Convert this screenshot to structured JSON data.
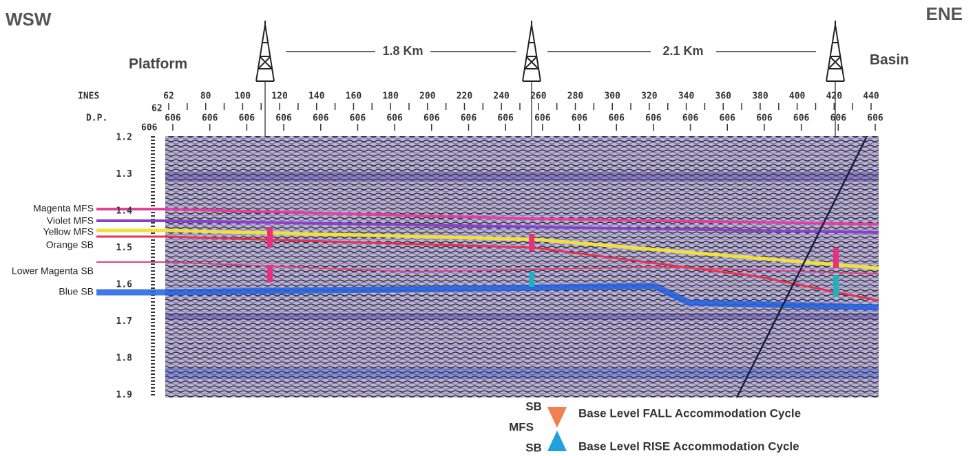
{
  "header": {
    "left": "WSW",
    "right": "ENE"
  },
  "locations": {
    "left": "Platform",
    "right": "Basin"
  },
  "distances": [
    "1.8 Km",
    "2.1 Km"
  ],
  "row_labels": {
    "lines": "INES",
    "sp": "D.P."
  },
  "line_numbers": [
    "62",
    "80",
    "100",
    "120",
    "140",
    "160",
    "180",
    "200",
    "220",
    "240",
    "260",
    "280",
    "300",
    "320",
    "340",
    "360",
    "380",
    "400",
    "420",
    "440"
  ],
  "sp_left": [
    "62",
    "606"
  ],
  "sp_numbers": [
    "606",
    "606",
    "606",
    "606",
    "606",
    "606",
    "606",
    "606",
    "606",
    "606",
    "606",
    "606",
    "606",
    "606",
    "606",
    "606",
    "606",
    "606",
    "606",
    "606"
  ],
  "time_labels": [
    "1.2",
    "1.3",
    "1.4",
    "1.5",
    "1.6",
    "1.7",
    "1.8",
    "1.9"
  ],
  "horizons": [
    "Magenta MFS",
    "Violet MFS",
    "Yellow MFS",
    "Orange SB",
    "Lower Magenta SB",
    "Blue SB"
  ],
  "legend": {
    "top_sb": "SB",
    "mfs": "MFS",
    "bottom_sb": "SB",
    "fall": "Base Level FALL Accommodation Cycle",
    "rise": "Base Level RISE Accommodation Cycle"
  }
}
